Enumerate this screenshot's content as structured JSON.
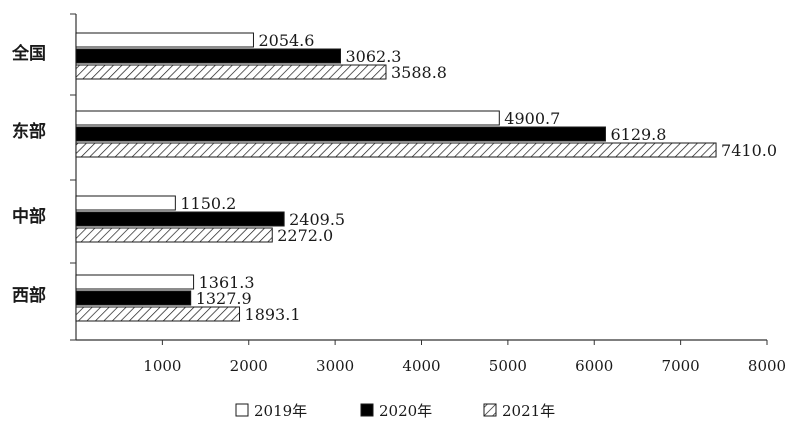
{
  "chart_data": {
    "type": "bar",
    "orientation": "horizontal",
    "categories": [
      "全国",
      "东部",
      "中部",
      "西部"
    ],
    "series": [
      {
        "name": "2019年",
        "values": [
          2054.6,
          4900.7,
          1150.2,
          1361.3
        ],
        "fill": "white"
      },
      {
        "name": "2020年",
        "values": [
          3062.3,
          6129.8,
          2409.5,
          1327.9
        ],
        "fill": "black"
      },
      {
        "name": "2021年",
        "values": [
          3588.8,
          7410.0,
          2272.0,
          1893.1
        ],
        "fill": "hatched"
      }
    ],
    "value_labels": [
      [
        "2054.6",
        "4900.7",
        "1150.2",
        "1361.3"
      ],
      [
        "3062.3",
        "6129.8",
        "2409.5",
        "1327.9"
      ],
      [
        "3588.8",
        "7410.0",
        "2272.0",
        "1893.1"
      ]
    ],
    "xlim": [
      0,
      8000
    ],
    "xticks": [
      1000,
      2000,
      3000,
      4000,
      5000,
      6000,
      7000,
      8000
    ],
    "xtick_labels": [
      "1000",
      "2000",
      "3000",
      "4000",
      "5000",
      "6000",
      "7000",
      "8000"
    ],
    "grid": false,
    "legend_position": "bottom",
    "title": "",
    "xlabel": "",
    "ylabel": ""
  },
  "colors": {
    "axis": "#333333",
    "bar_stroke": "#1a1a1a",
    "black_fill": "#000000",
    "white_fill": "#ffffff"
  }
}
